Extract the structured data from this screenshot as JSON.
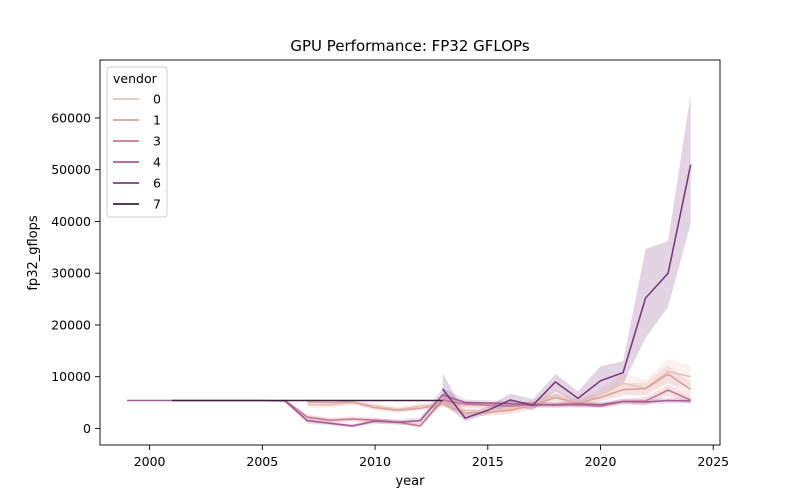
{
  "chart_data": {
    "type": "line",
    "title": "GPU Performance: FP32 GFLOPs",
    "xlabel": "year",
    "ylabel": "fp32_gflops",
    "xlim": [
      1997.8,
      2025.3
    ],
    "ylim": [
      -3200,
      71200
    ],
    "xticks": [
      2000,
      2005,
      2010,
      2015,
      2020,
      2025
    ],
    "yticks": [
      0,
      10000,
      20000,
      30000,
      40000,
      50000,
      60000
    ],
    "yticks_labels": [
      "0",
      "10000",
      "20000",
      "30000",
      "40000",
      "50000",
      "60000"
    ],
    "grid": false,
    "legend": {
      "title": "vendor",
      "placement": "top-left"
    },
    "series": [
      {
        "name": "0",
        "color": "#ebc1b6",
        "x": [
          2007,
          2008,
          2009,
          2010,
          2011,
          2012,
          2013,
          2014,
          2015,
          2016,
          2017,
          2018,
          2019,
          2020,
          2021,
          2022,
          2023,
          2024
        ],
        "y": [
          4600,
          4500,
          5000,
          4400,
          3700,
          4300,
          4800,
          3500,
          3300,
          3800,
          4600,
          6500,
          4700,
          6500,
          8700,
          7800,
          11000,
          10000
        ],
        "lo": [
          4000,
          3900,
          4500,
          3800,
          3200,
          3700,
          4300,
          2600,
          2400,
          2800,
          3800,
          5400,
          3900,
          5400,
          6800,
          6200,
          8600,
          7800
        ],
        "hi": [
          5200,
          5100,
          5500,
          5000,
          4200,
          4900,
          5300,
          4400,
          4200,
          4800,
          5400,
          7600,
          5500,
          7600,
          10600,
          9400,
          13400,
          12200
        ]
      },
      {
        "name": "1",
        "color": "#d9a3a1",
        "x": [
          2007,
          2008,
          2009,
          2010,
          2011,
          2012,
          2013,
          2014,
          2015,
          2016,
          2017,
          2018,
          2019,
          2020,
          2021,
          2022,
          2023,
          2024
        ],
        "y": [
          5100,
          5000,
          5100,
          4000,
          3500,
          3900,
          4700,
          3000,
          3100,
          3500,
          4500,
          6000,
          4800,
          6000,
          7500,
          7700,
          10500,
          7500
        ],
        "lo": [
          4600,
          4500,
          4700,
          3500,
          3000,
          3400,
          4200,
          2400,
          2500,
          2800,
          3800,
          5200,
          4100,
          5200,
          6300,
          6500,
          8800,
          6100
        ],
        "hi": [
          5600,
          5500,
          5500,
          4500,
          4000,
          4400,
          5200,
          3600,
          3700,
          4200,
          5200,
          6800,
          5500,
          6800,
          8700,
          8900,
          12200,
          8900
        ]
      },
      {
        "name": "3",
        "color": "#c9788f",
        "x": [
          2006,
          2007,
          2008,
          2009,
          2010,
          2011,
          2012,
          2013,
          2014,
          2015,
          2016,
          2017,
          2018,
          2019,
          2020,
          2021,
          2022,
          2023,
          2024
        ],
        "y": [
          5400,
          2200,
          1600,
          1800,
          1600,
          1200,
          500,
          5500,
          4700,
          4500,
          4300,
          4700,
          4500,
          4600,
          4300,
          5200,
          5300,
          7400,
          5500
        ],
        "lo": [
          5100,
          1700,
          1100,
          1300,
          1100,
          800,
          200,
          4600,
          4100,
          4000,
          3700,
          4200,
          4000,
          4100,
          3900,
          4700,
          4500,
          6300,
          4800
        ],
        "hi": [
          5700,
          2700,
          2100,
          2300,
          2100,
          1600,
          800,
          6400,
          5300,
          5000,
          4900,
          5200,
          5000,
          5100,
          4700,
          5700,
          6100,
          8500,
          6200
        ]
      },
      {
        "name": "4",
        "color": "#a45d93",
        "x": [
          1999,
          2000,
          2001,
          2002,
          2003,
          2004,
          2005,
          2006,
          2007,
          2008,
          2009,
          2010,
          2011,
          2012,
          2013,
          2014,
          2015,
          2016,
          2017,
          2018,
          2019,
          2020,
          2021,
          2022,
          2023,
          2024
        ],
        "y": [
          5400,
          5400,
          5400,
          5400,
          5400,
          5400,
          5400,
          5300,
          1500,
          1000,
          500,
          1400,
          1200,
          1500,
          6500,
          5000,
          4900,
          4800,
          4500,
          4600,
          4700,
          4600,
          5200,
          5100,
          5400,
          5300
        ],
        "lo": [
          5300,
          5300,
          5300,
          5300,
          5300,
          5300,
          5300,
          5200,
          900,
          600,
          200,
          900,
          700,
          900,
          5200,
          4400,
          4400,
          4300,
          4000,
          4100,
          4200,
          4100,
          4700,
          4600,
          4900,
          4800
        ],
        "hi": [
          5500,
          5500,
          5500,
          5500,
          5500,
          5500,
          5500,
          5400,
          2100,
          1400,
          800,
          1900,
          1700,
          2100,
          7800,
          5600,
          5400,
          5300,
          5000,
          5100,
          5200,
          5100,
          5700,
          5600,
          5900,
          5800
        ]
      },
      {
        "name": "6",
        "color": "#7b3c7d",
        "x": [
          2013,
          2014,
          2015,
          2016,
          2017,
          2018,
          2019,
          2020,
          2021,
          2022,
          2023,
          2024
        ],
        "y": [
          7600,
          2000,
          3500,
          5500,
          4500,
          9000,
          5800,
          9200,
          10800,
          25200,
          30000,
          51000
        ],
        "lo": [
          4800,
          1400,
          2800,
          4500,
          3500,
          7200,
          4600,
          6800,
          8600,
          17500,
          23500,
          39500
        ],
        "hi": [
          10700,
          2700,
          4300,
          6700,
          5700,
          10500,
          7200,
          12000,
          13000,
          34700,
          36200,
          64700
        ]
      },
      {
        "name": "7",
        "color": "#3b1f3f",
        "x": [
          2001,
          2002,
          2003,
          2004,
          2005,
          2006,
          2007,
          2008,
          2009,
          2010,
          2011,
          2012,
          2013
        ],
        "y": [
          5400,
          5400,
          5400,
          5400,
          5400,
          5400,
          5400,
          5400,
          5400,
          5400,
          5400,
          5400,
          5400
        ],
        "lo": [
          5350,
          5350,
          5350,
          5350,
          5350,
          5350,
          5350,
          5350,
          5350,
          5350,
          5350,
          5350,
          5350
        ],
        "hi": [
          5450,
          5450,
          5450,
          5450,
          5450,
          5450,
          5450,
          5450,
          5450,
          5450,
          5450,
          5450,
          5450
        ]
      }
    ]
  }
}
